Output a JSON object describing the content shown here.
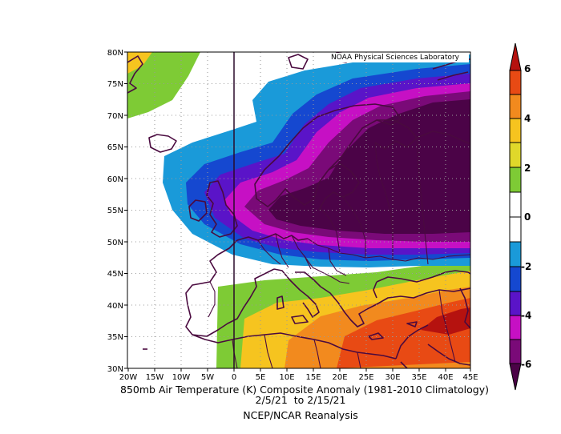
{
  "map": {
    "credit": "NOAA Physical Sciences Laboratory",
    "title_line1": "850mb Air Temperature (K) Composite Anomaly (1981-2010 Climatology)",
    "title_line2": "2/5/21  to 2/15/21",
    "source": "NCEP/NCAR Reanalysis",
    "lat_labels": [
      "80N",
      "75N",
      "70N",
      "65N",
      "60N",
      "55N",
      "50N",
      "45N",
      "40N",
      "35N",
      "30N"
    ],
    "lon_labels": [
      "20W",
      "15W",
      "10W",
      "5W",
      "0",
      "5E",
      "10E",
      "15E",
      "20E",
      "25E",
      "30E",
      "35E",
      "40E",
      "45E"
    ],
    "extent": {
      "lon_min": -20,
      "lon_max": 45,
      "lat_min": 30,
      "lat_max": 80
    }
  },
  "colorbar": {
    "labels": [
      "6",
      "4",
      "2",
      "0",
      "-2",
      "-4",
      "-6"
    ],
    "bands": [
      {
        "range": "5 to 6",
        "color": "#b5120f"
      },
      {
        "range": "4 to 5",
        "color": "#e84a14"
      },
      {
        "range": "3 to 4",
        "color": "#f28a1e"
      },
      {
        "range": "2 to 3",
        "color": "#f6c41f"
      },
      {
        "range": "1 to 2",
        "color": "#7ecb35"
      },
      {
        "range": "0 to 1",
        "color": "#ffffff"
      },
      {
        "range": "-1 to 0",
        "color": "#ffffff"
      },
      {
        "range": "-2 to -1",
        "color": "#1a9ad9"
      },
      {
        "range": "-3 to -2",
        "color": "#1548d0"
      },
      {
        "range": "-4 to -3",
        "color": "#5a14c8"
      },
      {
        "range": "-5 to -4",
        "color": "#c610c4"
      },
      {
        "range": "-6 to -5",
        "color": "#7a0a78"
      },
      {
        "range": "< -6",
        "color": "#4b0347"
      }
    ]
  }
}
